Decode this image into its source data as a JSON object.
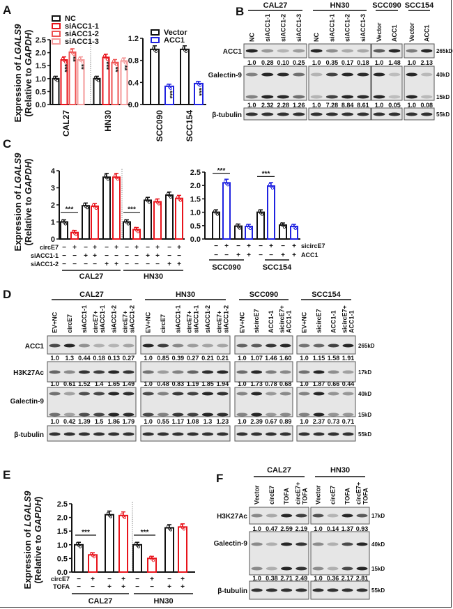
{
  "panel_labels": [
    "A",
    "B",
    "C",
    "D",
    "E",
    "F"
  ],
  "ylabel": {
    "line1": [
      "Expression of ",
      "LGALS9"
    ],
    "line2": [
      "(Relative to ",
      "GAPDH",
      ")"
    ]
  },
  "chart_data": [
    {
      "panel": "A",
      "type": "bar",
      "ylim": [
        0,
        2.5
      ],
      "yticks": [
        "0.0",
        "0.5",
        "1.0",
        "1.5",
        "2.0",
        "2.5"
      ],
      "categories": [
        "CAL27",
        "HN30"
      ],
      "series": [
        {
          "name": "NC",
          "color": "#111111",
          "values": [
            1.0,
            1.0
          ],
          "sig": [
            "",
            ""
          ]
        },
        {
          "name": "siACC1-1",
          "color": "#e8141c",
          "values": [
            1.72,
            1.82
          ],
          "sig": [
            "***",
            "***"
          ]
        },
        {
          "name": "siACC1-2",
          "color": "#ee5252",
          "values": [
            2.02,
            1.62
          ],
          "sig": [
            "**",
            "**"
          ]
        },
        {
          "name": "siACC1-3",
          "color": "#f49a9a",
          "values": [
            1.72,
            1.68
          ],
          "sig": [
            "**",
            "**"
          ]
        }
      ]
    },
    {
      "panel": "A",
      "type": "bar",
      "ylim": [
        0,
        1.2
      ],
      "yticks": [
        "0.0",
        "0.4",
        "0.8",
        "1.2"
      ],
      "categories": [
        "SCC090",
        "SCC154"
      ],
      "series": [
        {
          "name": "Vector",
          "color": "#111111",
          "values": [
            1.0,
            1.0
          ],
          "sig": [
            "",
            ""
          ]
        },
        {
          "name": "ACC1",
          "color": "#1f22e0",
          "values": [
            0.33,
            0.38
          ],
          "sig": [
            "***",
            "***"
          ]
        }
      ]
    },
    {
      "panel": "C",
      "type": "bar",
      "ylim": [
        0,
        4
      ],
      "yticks": [
        "0",
        "1",
        "2",
        "3",
        "4"
      ],
      "values": [
        1.0,
        0.38,
        1.95,
        1.92,
        3.62,
        3.62,
        1.0,
        0.55,
        2.27,
        2.18,
        2.57,
        2.38
      ],
      "bar_colors": [
        "#111111",
        "#e8141c",
        "#111111",
        "#e8141c",
        "#111111",
        "#e8141c",
        "#111111",
        "#e8141c",
        "#111111",
        "#e8141c",
        "#111111",
        "#e8141c"
      ],
      "conditions": [
        {
          "label": "circE7",
          "values": [
            "−",
            "+",
            "−",
            "+",
            "−",
            "+",
            "−",
            "+",
            "−",
            "+",
            "−",
            "+"
          ]
        },
        {
          "label": "siACC1-1",
          "values": [
            "−",
            "−",
            "+",
            "+",
            "−",
            "−",
            "−",
            "−",
            "+",
            "+",
            "−",
            "−"
          ]
        },
        {
          "label": "siACC1-2",
          "values": [
            "−",
            "−",
            "−",
            "−",
            "+",
            "+",
            "−",
            "−",
            "−",
            "−",
            "+",
            "+"
          ]
        }
      ],
      "groups": [
        "CAL27",
        "HN30"
      ],
      "brackets": [
        {
          "bars": [
            0,
            1
          ],
          "label": "***"
        },
        {
          "bars": [
            6,
            7
          ],
          "label": "***"
        }
      ]
    },
    {
      "panel": "C",
      "type": "bar",
      "ylim": [
        0,
        2.5
      ],
      "yticks": [
        "0.0",
        "0.5",
        "1.0",
        "1.5",
        "2.0",
        "2.5"
      ],
      "values": [
        1.0,
        2.1,
        0.48,
        0.47,
        1.0,
        1.98,
        0.52,
        0.47
      ],
      "bar_colors": [
        "#111111",
        "#1f22e0",
        "#111111",
        "#1f22e0",
        "#111111",
        "#1f22e0",
        "#111111",
        "#1f22e0"
      ],
      "conditions": [
        {
          "label": "sicircE7",
          "values": [
            "−",
            "+",
            "−",
            "+",
            "−",
            "+",
            "−",
            "+"
          ]
        },
        {
          "label": "ACC1",
          "values": [
            "−",
            "−",
            "+",
            "+",
            "−",
            "−",
            "+",
            "+"
          ]
        }
      ],
      "groups": [
        "SCC090",
        "SCC154"
      ],
      "brackets": [
        {
          "bars": [
            0,
            1
          ],
          "label": "***"
        },
        {
          "bars": [
            4,
            5
          ],
          "label": "***"
        }
      ]
    },
    {
      "panel": "E",
      "type": "bar",
      "ylim": [
        0,
        2.5
      ],
      "yticks": [
        "0.0",
        "0.5",
        "1.0",
        "1.5",
        "2.0",
        "2.5"
      ],
      "values": [
        1.0,
        0.63,
        2.1,
        2.07,
        1.0,
        0.5,
        1.62,
        1.65
      ],
      "bar_colors": [
        "#111111",
        "#e8141c",
        "#111111",
        "#e8141c",
        "#111111",
        "#e8141c",
        "#111111",
        "#e8141c"
      ],
      "conditions": [
        {
          "label": "circE7",
          "values": [
            "−",
            "+",
            "−",
            "+",
            "−",
            "+",
            "−",
            "+"
          ]
        },
        {
          "label": "TOFA",
          "values": [
            "−",
            "−",
            "+",
            "+",
            "−",
            "−",
            "+",
            "+"
          ]
        }
      ],
      "groups": [
        "CAL27",
        "HN30"
      ],
      "brackets": [
        {
          "bars": [
            0,
            1
          ],
          "label": "***"
        },
        {
          "bars": [
            4,
            5
          ],
          "label": "***"
        }
      ]
    }
  ],
  "blots": {
    "B": {
      "groups": [
        {
          "name": "CAL27",
          "lanes": [
            [
              "NC"
            ],
            [
              "siACC1-1"
            ],
            [
              "siACC1-2"
            ],
            [
              "siACC1-3"
            ]
          ]
        },
        {
          "name": "HN30",
          "lanes": [
            [
              "NC"
            ],
            [
              "siACC1-1"
            ],
            [
              "siACC1-2"
            ],
            [
              "siACC1-3"
            ]
          ]
        },
        {
          "name": "SCC090",
          "lanes": [
            [
              "Vector"
            ],
            [
              "ACC1"
            ]
          ]
        },
        {
          "name": "SCC154",
          "lanes": [
            [
              "Vector"
            ],
            [
              "ACC1"
            ]
          ]
        }
      ],
      "rows": [
        {
          "label": "ACC1",
          "kd": [
            "265kD"
          ],
          "quant": [
            [
              "1.0",
              "0.28",
              "0.10",
              "0.25"
            ],
            [
              "1.0",
              "0.35",
              "0.17",
              "0.18"
            ],
            [
              "1.0",
              "1.48"
            ],
            [
              "1.0",
              "2.13"
            ]
          ]
        },
        {
          "label": "Galectin-9",
          "kd": [
            "40kD",
            "15kD"
          ],
          "quant": [
            [
              "1.0",
              "2.32",
              "2.28",
              "1.26"
            ],
            [
              "1.0",
              "7.28",
              "8.84",
              "8.61"
            ],
            [
              "1.0",
              "0.05"
            ],
            [
              "1.0",
              "0.08"
            ]
          ]
        },
        {
          "label": "β-tubulin",
          "kd": [
            "55kD"
          ]
        }
      ]
    },
    "D": {
      "groups": [
        {
          "name": "CAL27",
          "lanes": [
            [
              "EV+NC"
            ],
            [
              "circE7"
            ],
            [
              "siACC1-1"
            ],
            [
              "circE7+",
              "siACC1-1"
            ],
            [
              "siACC1-2"
            ],
            [
              "circE7+",
              "siACC1-2"
            ]
          ]
        },
        {
          "name": "HN30",
          "lanes": [
            [
              "EV+NC"
            ],
            [
              "circE7"
            ],
            [
              "siACC1-1"
            ],
            [
              "circE7+",
              "siACC1-1"
            ],
            [
              "siACC1-2"
            ],
            [
              "circE7+",
              "siACC1-2"
            ]
          ]
        },
        {
          "name": "SCC090",
          "lanes": [
            [
              "EV+NC"
            ],
            [
              "sicircE7"
            ],
            [
              "ACC1-1"
            ],
            [
              "sicircE7+",
              "ACC1-1"
            ]
          ]
        },
        {
          "name": "SCC154",
          "lanes": [
            [
              "EV+NC"
            ],
            [
              "sicircE7"
            ],
            [
              "ACC1-1"
            ],
            [
              "sicircE7+",
              "ACC1-1"
            ]
          ]
        }
      ],
      "rows": [
        {
          "label": "ACC1",
          "kd": [
            "265kD"
          ],
          "quant": [
            [
              "1.0",
              "1.3",
              "0.44",
              "0.18",
              "0.13",
              "0.27"
            ],
            [
              "1.0",
              "0.85",
              "0.39",
              "0.27",
              "0.21",
              "0.21"
            ],
            [
              "1.0",
              "1.07",
              "1.46",
              "1.60"
            ],
            [
              "1.0",
              "1.15",
              "1.58",
              "1.91"
            ]
          ]
        },
        {
          "label": "H3K27Ac",
          "kd": [
            "17kD"
          ],
          "quant": [
            [
              "1.0",
              "0.61",
              "1.52",
              "1.4",
              "1.65",
              "1.49"
            ],
            [
              "1.0",
              "0.48",
              "0.83",
              "1.19",
              "1.85",
              "1.94"
            ],
            [
              "1.0",
              "1.73",
              "0.78",
              "0.68"
            ],
            [
              "1.0",
              "1.87",
              "0.66",
              "0.44"
            ]
          ]
        },
        {
          "label": "Galectin-9",
          "kd": [
            "40kD",
            "15kD"
          ],
          "quant": [
            [
              "1.0",
              "0.42",
              "1.39",
              "1.5",
              "1.86",
              "1.79"
            ],
            [
              "1.0",
              "0.55",
              "1.17",
              "1.08",
              "1.3",
              "1.23"
            ],
            [
              "1.0",
              "2.39",
              "0.67",
              "0.89"
            ],
            [
              "1.0",
              "2.37",
              "0.73",
              "0.71"
            ]
          ]
        },
        {
          "label": "β-tubulin",
          "kd": [
            "55kD"
          ]
        }
      ]
    },
    "F": {
      "groups": [
        {
          "name": "CAL27",
          "lanes": [
            [
              "Vector"
            ],
            [
              "circE7"
            ],
            [
              "TOFA"
            ],
            [
              "circE7+",
              "TOFA"
            ]
          ]
        },
        {
          "name": "HN30",
          "lanes": [
            [
              "Vector"
            ],
            [
              "circE7"
            ],
            [
              "TOFA"
            ],
            [
              "circE7+",
              "TOFA"
            ]
          ]
        }
      ],
      "rows": [
        {
          "label": "H3K27Ac",
          "kd": [
            "17kD"
          ],
          "quant": [
            [
              "1.0",
              "0.47",
              "2.59",
              "2.19"
            ],
            [
              "1.0",
              "0.14",
              "1.37",
              "0.93"
            ]
          ]
        },
        {
          "label": "Galectin-9",
          "kd": [
            "40kD",
            "15kD"
          ],
          "quant": [
            [
              "1.0",
              "0.38",
              "2.71",
              "2.49"
            ],
            [
              "1.0",
              "0.36",
              "2.17",
              "2.81"
            ]
          ]
        },
        {
          "label": "β-tubulin",
          "kd": [
            "55kD"
          ]
        }
      ]
    }
  }
}
